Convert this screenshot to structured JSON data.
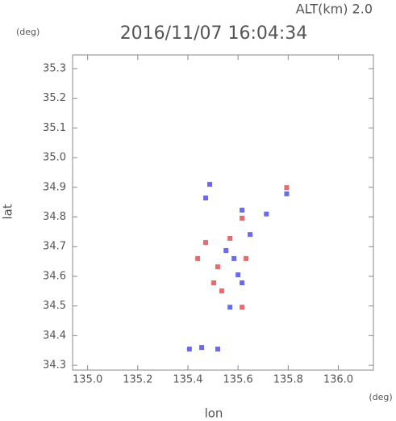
{
  "chart_data": {
    "type": "scatter",
    "title": "2016/11/07 16:04:34",
    "annotation": "ALT(km) 2.0",
    "y_unit": "(deg)",
    "x_unit": "(deg)",
    "xlabel": "lon",
    "ylabel": "lat",
    "xlim": [
      134.94,
      136.14
    ],
    "ylim": [
      34.284,
      35.346
    ],
    "xticks": [
      {
        "value": 135,
        "label": "135.0"
      },
      135.2,
      135.4,
      135.6,
      135.8,
      {
        "value": 136,
        "label": "136.0"
      }
    ],
    "yticks": [
      34.3,
      34.4,
      34.5,
      34.6,
      34.7,
      34.8,
      34.9,
      {
        "value": 35,
        "label": "35.0"
      },
      35.1,
      35.2,
      35.3
    ],
    "series": [
      {
        "color": "#6a6af0",
        "x": [
          135.471,
          135.616,
          135.713,
          135.794,
          135.584,
          135.6,
          135.616,
          135.552,
          135.455,
          135.519,
          135.406,
          135.568,
          135.648,
          135.487
        ],
        "y": [
          34.864,
          34.823,
          34.81,
          34.878,
          34.66,
          34.605,
          34.578,
          34.687,
          34.36,
          34.355,
          34.355,
          34.496,
          34.741,
          34.91
        ]
      },
      {
        "color": "#e86a6a",
        "x": [
          135.794,
          135.616,
          135.439,
          135.519,
          135.616,
          135.535,
          135.471,
          135.632,
          135.503,
          135.568
        ],
        "y": [
          34.899,
          34.796,
          34.66,
          34.632,
          34.496,
          34.551,
          34.714,
          34.66,
          34.578,
          34.728
        ]
      }
    ]
  }
}
